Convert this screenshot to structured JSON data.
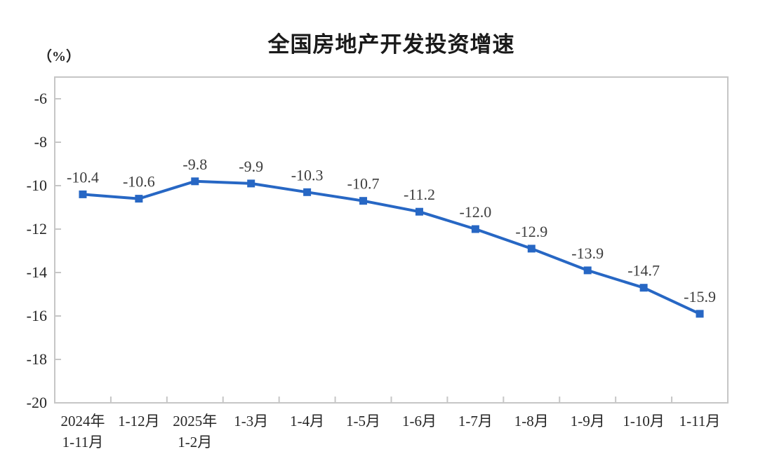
{
  "page": {
    "title": "全国房地产开发投资增速",
    "unit_label": "（%）"
  },
  "chart_data": {
    "type": "line",
    "title": "全国房地产开发投资增速",
    "ylabel": "（%）",
    "xlabel": "",
    "categories": [
      [
        "2024年",
        "1-11月"
      ],
      [
        "1-12月"
      ],
      [
        "2025年",
        "1-2月"
      ],
      [
        "1-3月"
      ],
      [
        "1-4月"
      ],
      [
        "1-5月"
      ],
      [
        "1-6月"
      ],
      [
        "1-7月"
      ],
      [
        "1-8月"
      ],
      [
        "1-9月"
      ],
      [
        "1-10月"
      ],
      [
        "1-11月"
      ]
    ],
    "values": [
      -10.4,
      -10.6,
      -9.8,
      -9.9,
      -10.3,
      -10.7,
      -11.2,
      -12.0,
      -12.9,
      -13.9,
      -14.7,
      -15.9
    ],
    "point_labels": [
      "-10.4",
      "-10.6",
      "-9.8",
      "-9.9",
      "-10.3",
      "-10.7",
      "-11.2",
      "-12.0",
      "-12.9",
      "-13.9",
      "-14.7",
      "-15.9"
    ],
    "ylim": [
      -20,
      -5
    ],
    "yticks": [
      -6,
      -8,
      -10,
      -12,
      -14,
      -16,
      -18,
      -20
    ],
    "grid": false,
    "legend_position": "none",
    "marker": "square",
    "colors": {
      "line": "#2767c4",
      "marker": "#2767c4",
      "axis": "#c6c6c6",
      "tick_label": "#262626",
      "data_label": "#3d3d3d",
      "title": "#1a1a1a"
    }
  }
}
